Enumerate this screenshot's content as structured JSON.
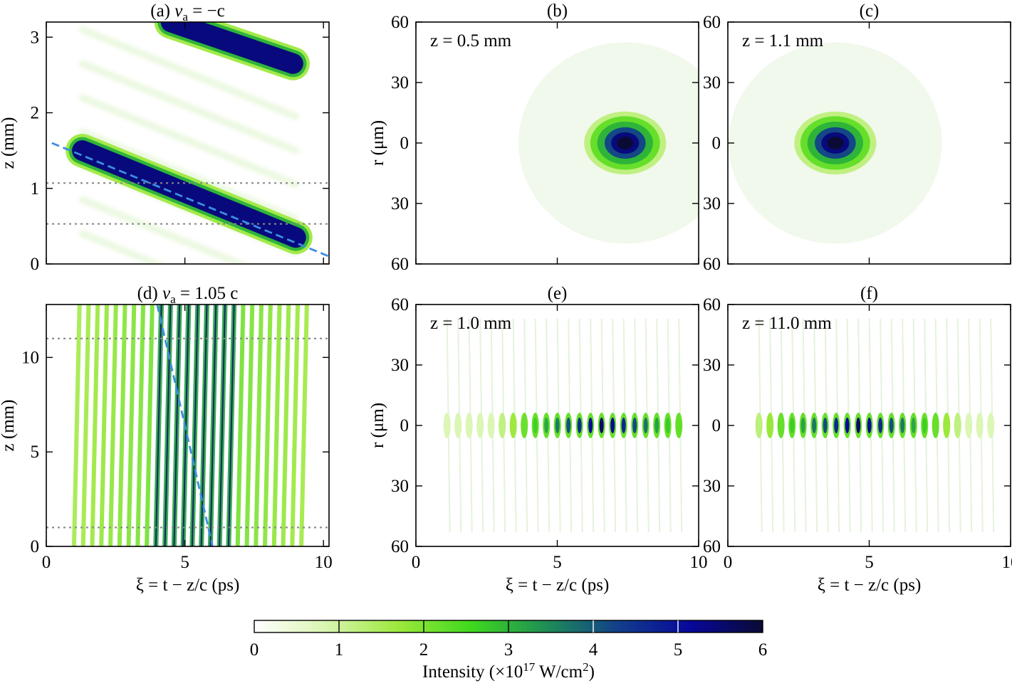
{
  "chart_data": [
    {
      "type": "heatmap",
      "panel": "(a)",
      "title_prefix": "(a)",
      "title_var": "v",
      "title_sub": "a",
      "title_rest": " = −c",
      "xlim": [
        0,
        10.2
      ],
      "ylim": [
        0,
        3.2
      ],
      "xticks": [
        0,
        5,
        10
      ],
      "yticks": [
        0,
        1,
        2,
        3
      ],
      "show_xticklabels": false,
      "ylabel": "z (mm)",
      "xlabel": "",
      "dotted_lines_z": [
        0.53,
        1.07
      ],
      "dashed_line": {
        "from": [
          0.2,
          1.6
        ],
        "to": [
          10.2,
          0.1
        ]
      },
      "bands": [
        {
          "from": [
            1.3,
            1.5
          ],
          "to": [
            9.0,
            0.35
          ],
          "thickness": 0.17,
          "intensity": 6
        },
        {
          "from": [
            4.5,
            3.2
          ],
          "to": [
            8.9,
            2.65
          ],
          "thickness": 0.17,
          "intensity": 6
        }
      ]
    },
    {
      "type": "heatmap",
      "panel": "(b)",
      "title_prefix": "(b)",
      "annotation": "z = 0.5 mm",
      "xlim": [
        0,
        10
      ],
      "ylim": [
        -60,
        60
      ],
      "xticks": [
        0,
        5,
        10
      ],
      "yticks": [
        60,
        30,
        0,
        30,
        60
      ],
      "show_xticklabels": false,
      "ylabel": "r (μm)",
      "xlabel": "",
      "spot": {
        "xi": 7.4,
        "r": 0,
        "half_width_xi": 1.45,
        "half_width_r": 6,
        "peak": 6
      }
    },
    {
      "type": "heatmap",
      "panel": "(c)",
      "title_prefix": "(c)",
      "annotation": "z = 1.1 mm",
      "xlim": [
        0,
        10
      ],
      "ylim": [
        -60,
        60
      ],
      "xticks": [
        0,
        5,
        10
      ],
      "yticks": [
        60,
        30,
        0,
        30,
        60
      ],
      "show_xticklabels": false,
      "ylabel": "",
      "xlabel": "",
      "spot": {
        "xi": 3.8,
        "r": 0,
        "half_width_xi": 1.45,
        "half_width_r": 6,
        "peak": 6
      }
    },
    {
      "type": "heatmap",
      "panel": "(d)",
      "title_prefix": "(d)",
      "title_var": "v",
      "title_sub": "a",
      "title_rest": " = 1.05 c",
      "xlim": [
        0,
        10.2
      ],
      "ylim": [
        0,
        12.8
      ],
      "xticks": [
        0,
        5,
        10
      ],
      "yticks": [
        0,
        5,
        10
      ],
      "show_xticklabels": true,
      "ylabel": "z (mm)",
      "xlabel": "ξ = t − z/c (ps)",
      "dotted_lines_z": [
        1.0,
        11.0
      ],
      "dashed_line": {
        "from": [
          4.0,
          12.8
        ],
        "to": [
          6.0,
          0.0
        ]
      },
      "fringes": {
        "count": 26,
        "xi_start": 1.0,
        "xi_end": 9.2,
        "shift_over_range": 2.8
      }
    },
    {
      "type": "heatmap",
      "panel": "(e)",
      "title_prefix": "(e)",
      "annotation": "z = 1.0 mm",
      "xlim": [
        0,
        10
      ],
      "ylim": [
        -60,
        60
      ],
      "xticks": [
        0,
        5,
        10
      ],
      "yticks": [
        60,
        30,
        0,
        30,
        60
      ],
      "show_xticklabels": true,
      "ylabel": "r (μm)",
      "xlabel": "ξ = t − z/c (ps)",
      "pulse_train": {
        "xi_start": 1.1,
        "xi_end": 9.3,
        "count": 22,
        "peak_xi": 6.6,
        "peak": 5.6
      }
    },
    {
      "type": "heatmap",
      "panel": "(f)",
      "title_prefix": "(f)",
      "annotation": "z = 11.0 mm",
      "xlim": [
        0,
        10
      ],
      "ylim": [
        -60,
        60
      ],
      "xticks": [
        0,
        5,
        10
      ],
      "yticks": [
        60,
        30,
        0,
        30,
        60
      ],
      "show_xticklabels": true,
      "ylabel": "",
      "xlabel": "ξ = t − z/c (ps)",
      "pulse_train": {
        "xi_start": 1.1,
        "xi_end": 9.3,
        "count": 22,
        "peak_xi": 4.6,
        "peak": 5.6
      }
    }
  ],
  "colorbar": {
    "ticks": [
      0,
      1,
      2,
      3,
      4,
      5,
      6
    ],
    "label": "Intensity (×10",
    "label_exp": "17",
    "label_unit": " W/cm",
    "label_unit_exp": "2",
    "label_close": ")",
    "colors": [
      "#ffffff",
      "#d8f5b0",
      "#9be83a",
      "#3ed81e",
      "#1f8f55",
      "#123f8a",
      "#07089a",
      "#0a0a35"
    ]
  }
}
